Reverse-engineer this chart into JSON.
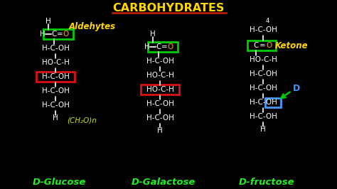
{
  "bg_color": "#000000",
  "title": "CARBOHYDRATES",
  "title_color": "#FFD700",
  "title_underline_color": "#CC2200",
  "title_fontsize": 11.5,
  "glucose_label": "D-Glucose",
  "galactose_label": "D-Galactose",
  "fructose_label": "D-fructose",
  "label_color": "#22EE22",
  "label_fontsize": 9.5,
  "aldehyde_label": "Aldehytes",
  "aldehyde_label_color": "#FFD700",
  "ketone_label": "Ketone",
  "ketone_label_color": "#FFD700",
  "ch2o_label": "(CH₂O)n",
  "ch2o_color": "#CCDD00",
  "struct_color": "#FFFFFF",
  "highlight_green": "#00CC00",
  "highlight_red": "#DD1111",
  "highlight_blue": "#4499FF",
  "orange_o": "#FFA500"
}
